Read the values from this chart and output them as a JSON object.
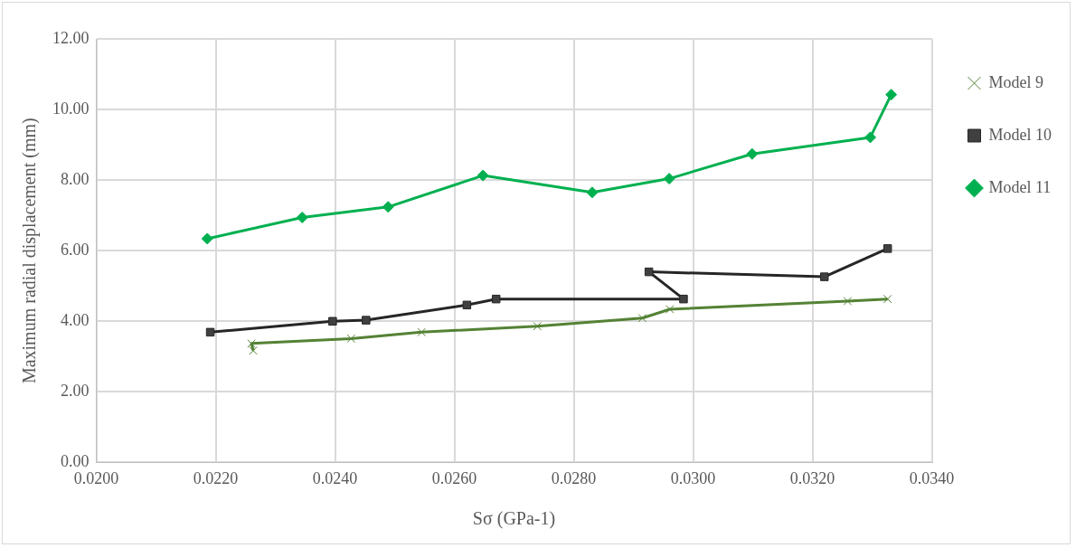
{
  "chart_data": {
    "type": "line",
    "xlabel": "Sσ (GPa-1)",
    "ylabel": "Maximum radial displacement (mm)",
    "xlim": [
      0.02,
      0.034
    ],
    "xticks": [
      {
        "value": 0.02,
        "label": "0.0200"
      },
      {
        "value": 0.022,
        "label": "0.0220"
      },
      {
        "value": 0.024,
        "label": "0.0240"
      },
      {
        "value": 0.026,
        "label": "0.0260"
      },
      {
        "value": 0.028,
        "label": "0.0280"
      },
      {
        "value": 0.03,
        "label": "0.0300"
      },
      {
        "value": 0.032,
        "label": "0.0320"
      },
      {
        "value": 0.034,
        "label": "0.0340"
      }
    ],
    "ylim": [
      0,
      12
    ],
    "yticks": [
      {
        "value": 0,
        "label": "0.00"
      },
      {
        "value": 2,
        "label": "2.00"
      },
      {
        "value": 4,
        "label": "4.00"
      },
      {
        "value": 6,
        "label": "6.00"
      },
      {
        "value": 8,
        "label": "8.00"
      },
      {
        "value": 10,
        "label": "10.00"
      },
      {
        "value": 12,
        "label": "12.00"
      }
    ],
    "grid": true,
    "legend": "right",
    "line_style": "solid",
    "series": [
      {
        "name": "Model 9",
        "color": "#548235",
        "marker": "cross",
        "x": [
          0.02263,
          0.0226,
          0.02427,
          0.02545,
          0.02739,
          0.02915,
          0.02961,
          0.03259,
          0.03326
        ],
        "values": [
          3.17,
          3.37,
          3.51,
          3.69,
          3.86,
          4.09,
          4.34,
          4.57,
          4.63
        ]
      },
      {
        "name": "Model 10",
        "color": "#262626",
        "marker": "square",
        "x": [
          0.02191,
          0.02396,
          0.02452,
          0.02621,
          0.0267,
          0.02984,
          0.02926,
          0.0322,
          0.03326
        ],
        "values": [
          3.69,
          4.0,
          4.03,
          4.46,
          4.63,
          4.63,
          5.4,
          5.26,
          6.06
        ]
      },
      {
        "name": "Model 11",
        "color": "#00b050",
        "marker": "diamond",
        "x": [
          0.02186,
          0.02345,
          0.02489,
          0.02648,
          0.02831,
          0.0296,
          0.03099,
          0.03297,
          0.03332
        ],
        "values": [
          6.34,
          6.94,
          7.24,
          8.13,
          7.65,
          8.04,
          8.74,
          9.21,
          10.42
        ]
      }
    ]
  }
}
